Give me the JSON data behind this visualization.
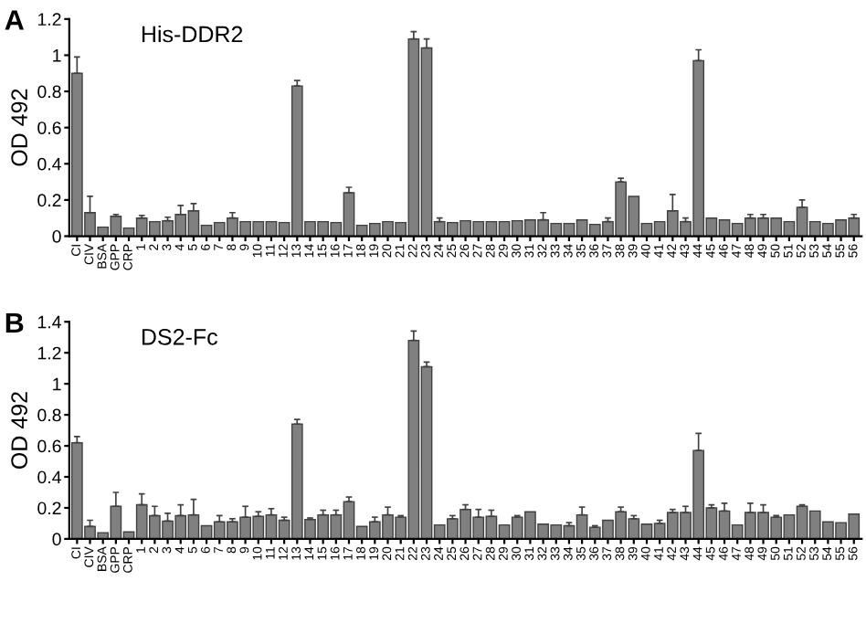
{
  "chart_data": [
    {
      "type": "bar",
      "title": "His-DDR2",
      "ylabel": "OD 492",
      "annotations": [
        "A"
      ],
      "categories": [
        "CI",
        "CIV",
        "BSA",
        "GPP",
        "CRP",
        "1",
        "2",
        "3",
        "4",
        "5",
        "6",
        "7",
        "8",
        "9",
        "10",
        "11",
        "12",
        "13",
        "14",
        "15",
        "16",
        "17",
        "18",
        "19",
        "20",
        "21",
        "22",
        "23",
        "24",
        "25",
        "26",
        "27",
        "28",
        "29",
        "30",
        "31",
        "32",
        "33",
        "34",
        "35",
        "36",
        "37",
        "38",
        "39",
        "40",
        "41",
        "42",
        "43",
        "44",
        "45",
        "46",
        "47",
        "48",
        "49",
        "50",
        "51",
        "52",
        "53",
        "54",
        "55",
        "56"
      ],
      "series": [
        {
          "color": "#808080",
          "values": [
            0.9,
            0.13,
            0.05,
            0.11,
            0.045,
            0.1,
            0.08,
            0.085,
            0.12,
            0.14,
            0.06,
            0.075,
            0.1,
            0.08,
            0.08,
            0.08,
            0.075,
            0.83,
            0.08,
            0.08,
            0.075,
            0.24,
            0.06,
            0.07,
            0.08,
            0.075,
            1.09,
            1.04,
            0.08,
            0.075,
            0.085,
            0.08,
            0.08,
            0.08,
            0.085,
            0.09,
            0.09,
            0.07,
            0.07,
            0.09,
            0.065,
            0.08,
            0.3,
            0.22,
            0.07,
            0.08,
            0.14,
            0.08,
            0.97,
            0.1,
            0.09,
            0.07,
            0.1,
            0.1,
            0.1,
            0.08,
            0.16,
            0.08,
            0.07,
            0.09,
            0.1
          ],
          "errors": [
            0.09,
            0.09,
            null,
            0.01,
            null,
            0.015,
            null,
            0.02,
            0.05,
            0.04,
            null,
            null,
            0.03,
            null,
            null,
            null,
            null,
            0.03,
            null,
            null,
            null,
            0.03,
            null,
            null,
            null,
            null,
            0.04,
            0.05,
            0.02,
            null,
            null,
            null,
            null,
            null,
            null,
            null,
            0.04,
            null,
            null,
            null,
            null,
            0.02,
            0.02,
            null,
            null,
            null,
            0.09,
            0.02,
            0.06,
            null,
            null,
            null,
            0.02,
            0.02,
            null,
            null,
            0.04,
            null,
            null,
            null,
            0.02
          ]
        }
      ],
      "ylim": [
        0,
        1.2
      ],
      "yticks": [
        0,
        0.2,
        0.4,
        0.6,
        0.8,
        1,
        1.2
      ],
      "grid": false
    },
    {
      "type": "bar",
      "title": "DS2-Fc",
      "ylabel": "OD 492",
      "annotations": [
        "B"
      ],
      "categories": [
        "CI",
        "CIV",
        "BSA",
        "GPP",
        "CRP",
        "1",
        "2",
        "3",
        "4",
        "5",
        "6",
        "7",
        "8",
        "9",
        "10",
        "11",
        "12",
        "13",
        "14",
        "15",
        "16",
        "17",
        "18",
        "19",
        "20",
        "21",
        "22",
        "23",
        "24",
        "25",
        "26",
        "27",
        "28",
        "29",
        "30",
        "31",
        "32",
        "33",
        "34",
        "35",
        "36",
        "37",
        "38",
        "39",
        "40",
        "41",
        "42",
        "43",
        "44",
        "45",
        "46",
        "47",
        "48",
        "49",
        "50",
        "51",
        "52",
        "53",
        "54",
        "55",
        "56"
      ],
      "series": [
        {
          "color": "#808080",
          "values": [
            0.62,
            0.08,
            0.04,
            0.21,
            0.045,
            0.22,
            0.15,
            0.115,
            0.15,
            0.155,
            0.085,
            0.11,
            0.11,
            0.14,
            0.145,
            0.155,
            0.12,
            0.74,
            0.125,
            0.155,
            0.155,
            0.24,
            0.08,
            0.11,
            0.155,
            0.14,
            1.28,
            1.11,
            0.09,
            0.13,
            0.19,
            0.14,
            0.145,
            0.09,
            0.14,
            0.175,
            0.095,
            0.09,
            0.085,
            0.155,
            0.075,
            0.12,
            0.175,
            0.13,
            0.095,
            0.1,
            0.17,
            0.17,
            0.57,
            0.2,
            0.18,
            0.09,
            0.17,
            0.17,
            0.14,
            0.155,
            0.21,
            0.18,
            0.11,
            0.105,
            0.16
          ],
          "errors": [
            0.04,
            0.04,
            null,
            0.09,
            null,
            0.07,
            0.06,
            0.05,
            0.07,
            0.1,
            null,
            0.04,
            0.02,
            0.07,
            0.03,
            0.04,
            0.02,
            0.03,
            0.01,
            0.03,
            0.03,
            0.03,
            null,
            0.03,
            0.05,
            0.01,
            0.06,
            0.03,
            null,
            0.02,
            0.03,
            0.05,
            0.04,
            null,
            0.01,
            null,
            null,
            null,
            0.02,
            0.05,
            0.01,
            null,
            0.03,
            0.02,
            null,
            0.02,
            0.02,
            0.04,
            0.11,
            0.02,
            0.05,
            null,
            0.06,
            0.05,
            0.01,
            null,
            0.01,
            null,
            null,
            null,
            null
          ]
        }
      ],
      "ylim": [
        0,
        1.4
      ],
      "yticks": [
        0,
        0.2,
        0.4,
        0.6,
        0.8,
        1,
        1.2,
        1.4
      ],
      "grid": false
    }
  ]
}
